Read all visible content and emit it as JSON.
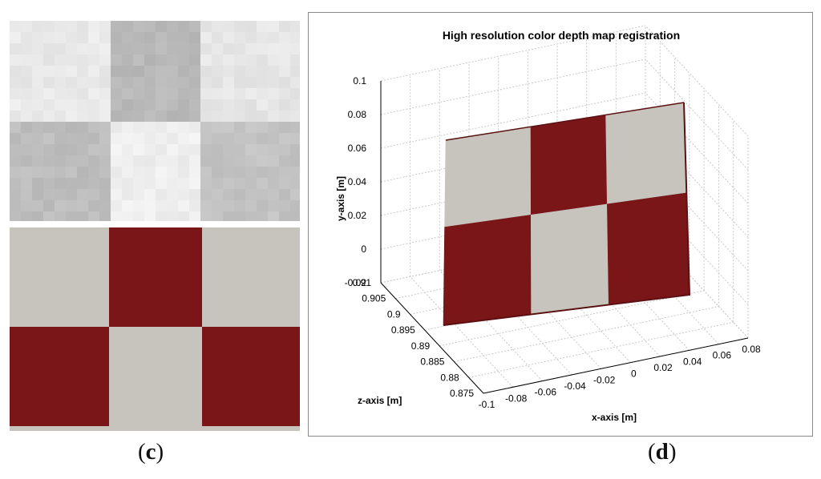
{
  "panel_c": {
    "caption_open": "(",
    "caption_letter": "c",
    "caption_close": ")",
    "depth_image_grid": {
      "rows": 2,
      "cols": 3,
      "tones": [
        [
          "#e9e9e9",
          "#b9b9b9",
          "#e6e6e6"
        ],
        [
          "#bdbdbd",
          "#efefef",
          "#c3c3c3"
        ]
      ]
    },
    "color_image_grid": {
      "rows": 2,
      "cols": 3,
      "pattern": [
        [
          "light",
          "dark",
          "light"
        ],
        [
          "dark",
          "light",
          "dark"
        ]
      ]
    }
  },
  "panel_d": {
    "caption_open": "(",
    "caption_letter": "d",
    "caption_close": ")"
  },
  "colors": {
    "checker_dark": "#7a1518",
    "checker_light": "#c6c4bd",
    "grid_line": "#c8c8c8",
    "axis_line": "#000000"
  },
  "chart_data": {
    "type": "surface3d",
    "title": "High resolution color depth map registration",
    "xlabel": "x-axis [m]",
    "ylabel": "y-axis [m]",
    "zlabel": "z-axis [m]",
    "x_ticks": [
      "-0.1",
      "-0.08",
      "-0.06",
      "-0.04",
      "-0.02",
      "0",
      "0.02",
      "0.04",
      "0.06",
      "0.08"
    ],
    "y_ticks": [
      "-0.02",
      "0",
      "0.02",
      "0.04",
      "0.06",
      "0.08",
      "0.1"
    ],
    "z_ticks": [
      "0.875",
      "0.88",
      "0.885",
      "0.89",
      "0.895",
      "0.9",
      "0.905",
      "0.91"
    ],
    "xlim": [
      -0.1,
      0.08
    ],
    "ylim": [
      -0.02,
      0.1
    ],
    "zlim": [
      0.875,
      0.91
    ],
    "grid": true,
    "surface": {
      "description_pattern": [
        [
          "light",
          "dark",
          "light"
        ],
        [
          "dark",
          "light",
          "dark"
        ]
      ],
      "rows": 2,
      "cols": 3
    }
  }
}
